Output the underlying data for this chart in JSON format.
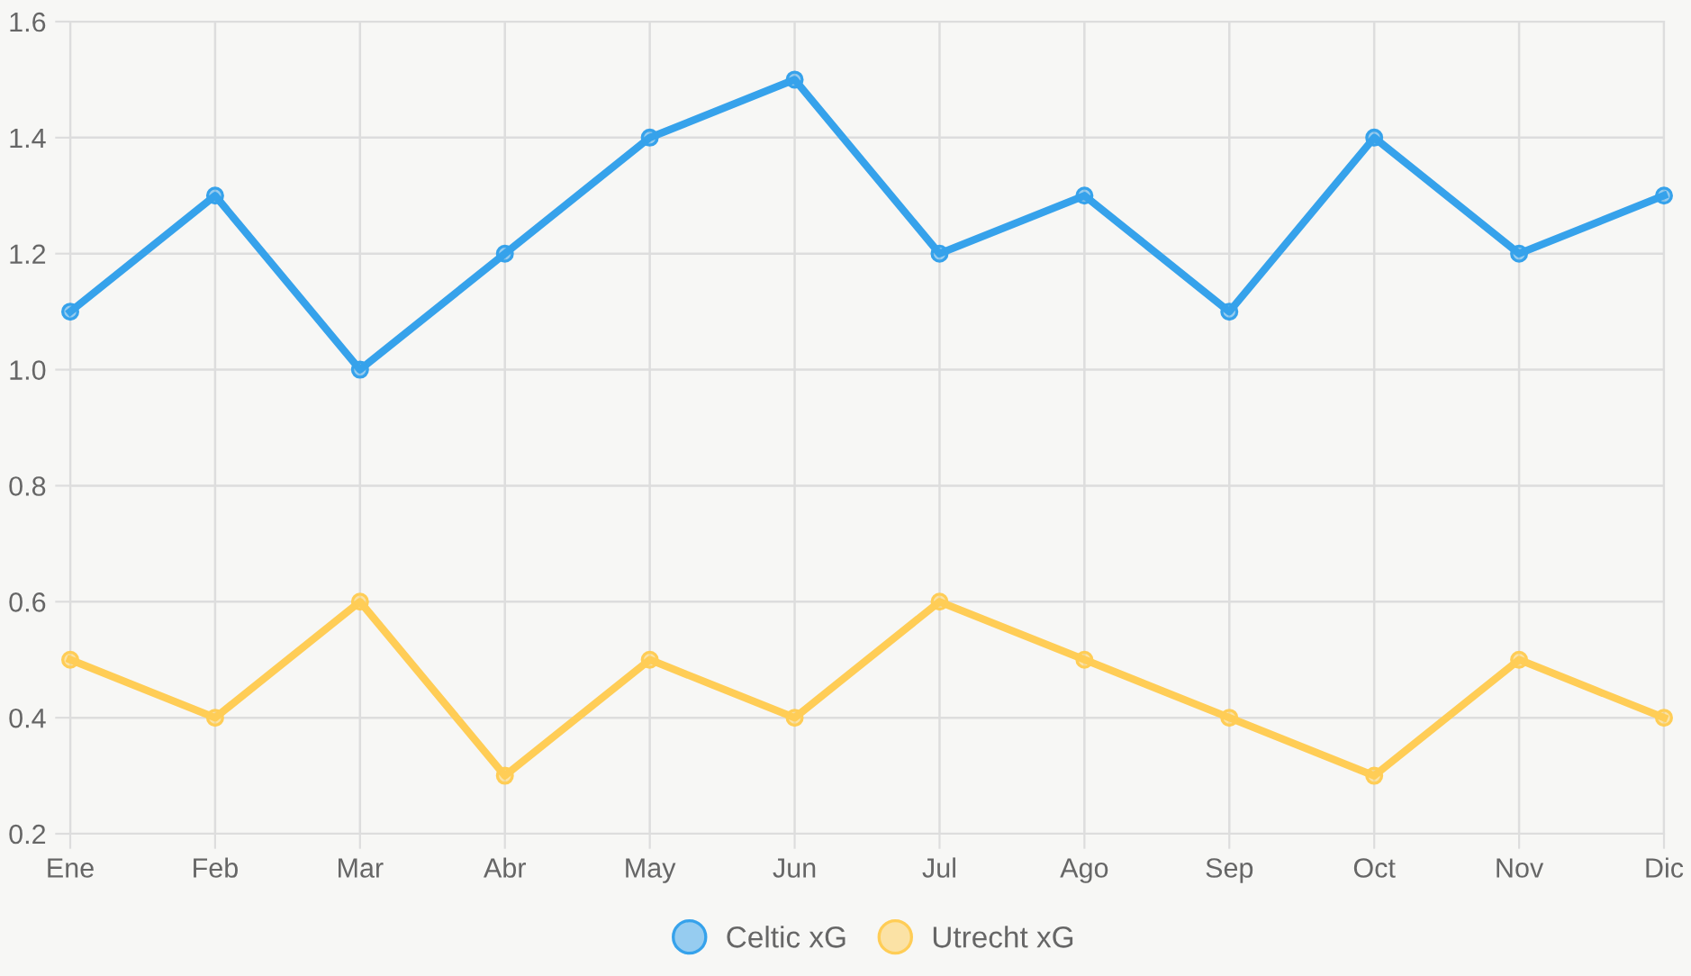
{
  "chart_data": {
    "type": "line",
    "categories": [
      "Ene",
      "Feb",
      "Mar",
      "Abr",
      "May",
      "Jun",
      "Jul",
      "Ago",
      "Sep",
      "Oct",
      "Nov",
      "Dic"
    ],
    "series": [
      {
        "name": "Celtic xG",
        "color": "#36a2eb",
        "values": [
          1.1,
          1.3,
          1.0,
          1.2,
          1.4,
          1.5,
          1.2,
          1.3,
          1.1,
          1.4,
          1.2,
          1.3
        ]
      },
      {
        "name": "Utrecht xG",
        "color": "#ffcd56",
        "values": [
          0.5,
          0.4,
          0.6,
          0.3,
          0.5,
          0.4,
          0.6,
          0.5,
          0.4,
          0.3,
          0.5,
          0.4
        ]
      }
    ],
    "ylim": [
      0.2,
      1.6
    ],
    "yticks": [
      {
        "value": 0.2,
        "label": "0.2"
      },
      {
        "value": 0.4,
        "label": "0.4"
      },
      {
        "value": 0.6,
        "label": "0.6"
      },
      {
        "value": 0.8,
        "label": "0.8"
      },
      {
        "value": 1.0,
        "label": "1.0"
      },
      {
        "value": 1.2,
        "label": "1.2"
      },
      {
        "value": 1.4,
        "label": "1.4"
      },
      {
        "value": 1.6,
        "label": "1.6"
      }
    ],
    "grid": true,
    "legend": "bottom",
    "marker": "circle",
    "line_style": "solid"
  }
}
